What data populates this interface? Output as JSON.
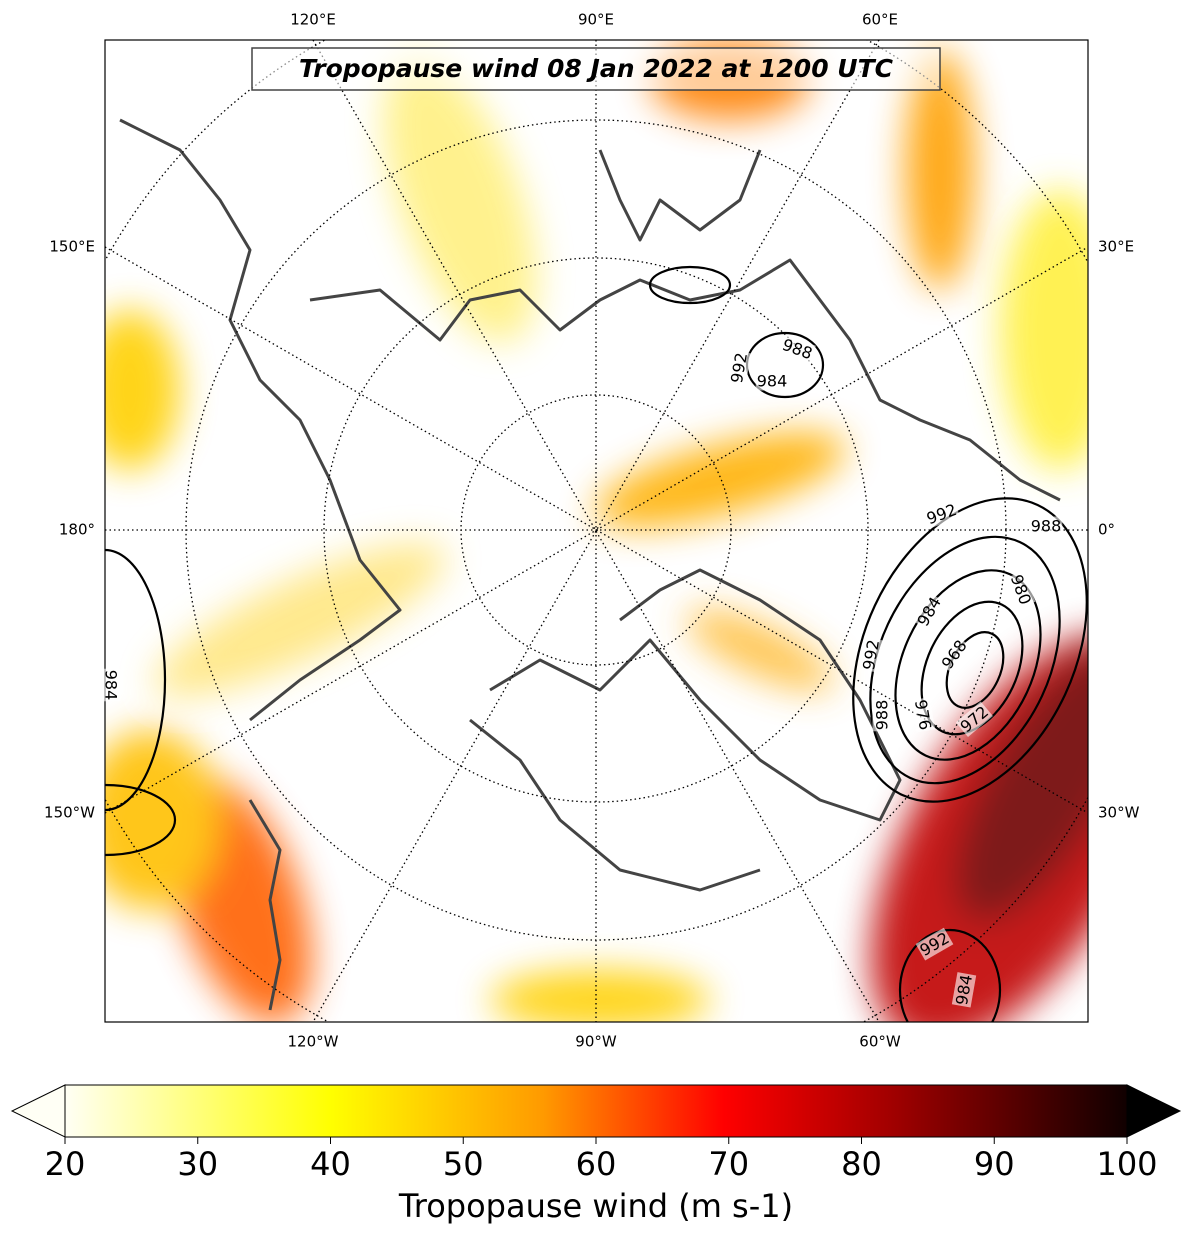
{
  "title": "Tropopause wind 08 Jan 2022 at 1200 UTC",
  "map": {
    "lon_labels_top": [
      "120°E",
      "90°E",
      "60°E"
    ],
    "lon_labels_bottom": [
      "120°W",
      "90°W",
      "60°W"
    ],
    "lon_labels_left": [
      "150°E",
      "180°",
      "150°W"
    ],
    "lon_labels_right": [
      "30°E",
      "0°",
      "30°W"
    ],
    "contour_labels": [
      992,
      988,
      980,
      984,
      968,
      976,
      972,
      988,
      992,
      992,
      984,
      988,
      984,
      992,
      984
    ]
  },
  "colorbar": {
    "label": "Tropopause wind (m s-1)",
    "range": [
      20,
      100
    ],
    "ticks": [
      20,
      30,
      40,
      50,
      60,
      70,
      80,
      90,
      100
    ],
    "extend": "both"
  }
}
